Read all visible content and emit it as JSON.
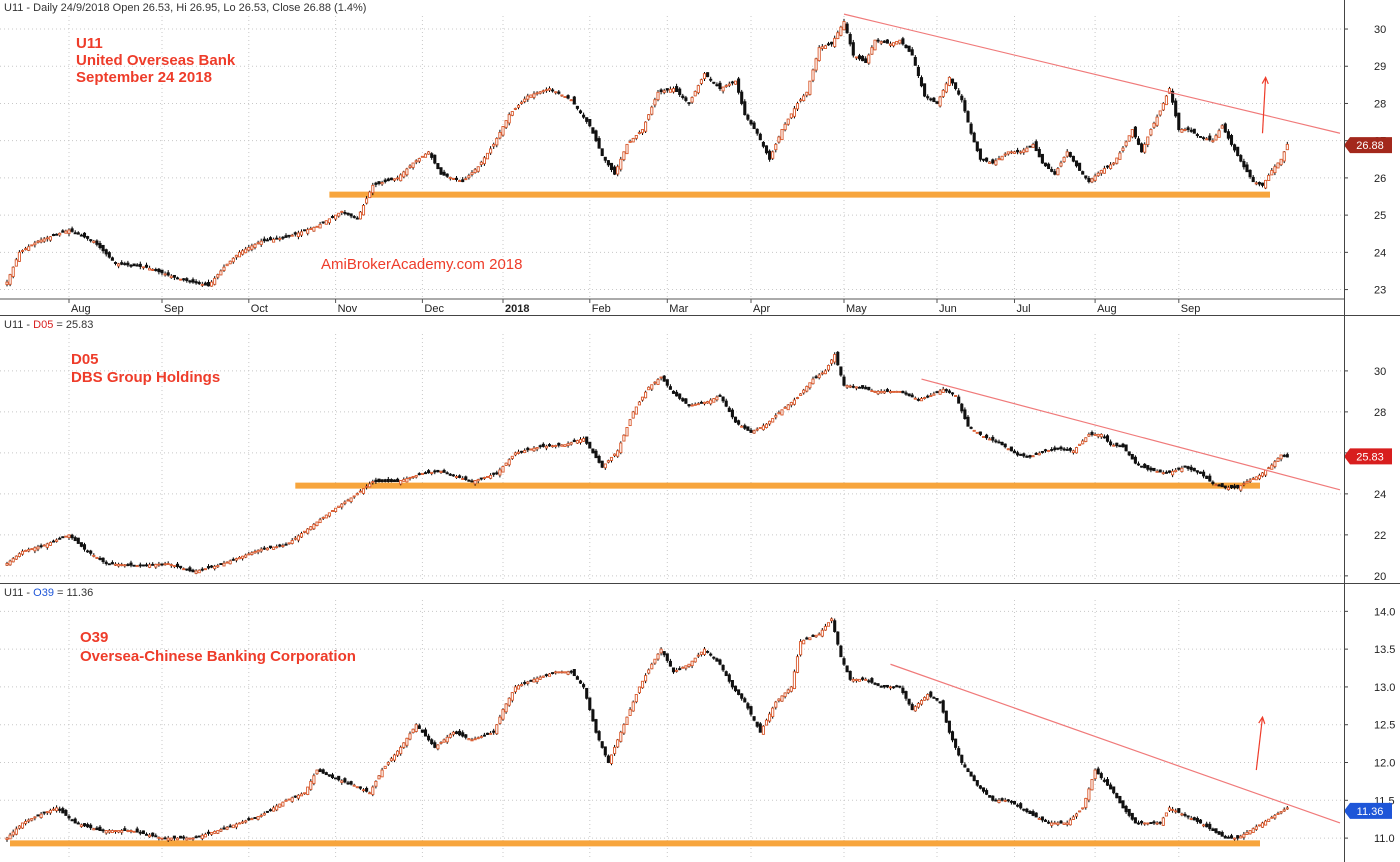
{
  "colors": {
    "up": "#d9582b",
    "down": "#111111",
    "support": "#f7a53d",
    "trend": "#f07a7a",
    "annotation": "#ee3c2a",
    "grid": "#c8c8c8",
    "badge_p1": "#a3281c",
    "badge_p2": "#d81e1e",
    "badge_p3": "#1e56d8"
  },
  "months": [
    "Aug",
    "Sep",
    "Oct",
    "Nov",
    "Dec",
    "2018",
    "Feb",
    "Mar",
    "Apr",
    "May",
    "Jun",
    "Jul",
    "Aug",
    "Sep"
  ],
  "watermark": "AmiBrokerAcademy.com  2018",
  "chart_data": [
    {
      "type": "candlestick",
      "header": {
        "symbol": "U11",
        "text": " - Daily 24/9/2018 Open 26.53, Hi 26.95, Lo 26.53, Close 26.88 (1.4%)"
      },
      "annotations": [
        "U11",
        "United Overseas Bank",
        "September 24 2018"
      ],
      "ylim": [
        22.8,
        30.35
      ],
      "yticks": [
        "23",
        "24",
        "25",
        "26",
        "27",
        "28",
        "29",
        "30"
      ],
      "last_value": "26.88",
      "support_level": 25.55,
      "anchors": [
        [
          0,
          23.2
        ],
        [
          4,
          24.0
        ],
        [
          10,
          24.3
        ],
        [
          20,
          24.6
        ],
        [
          28,
          24.3
        ],
        [
          35,
          23.7
        ],
        [
          45,
          23.6
        ],
        [
          55,
          23.3
        ],
        [
          65,
          23.1
        ],
        [
          70,
          23.6
        ],
        [
          75,
          24.0
        ],
        [
          82,
          24.3
        ],
        [
          90,
          24.4
        ],
        [
          100,
          24.7
        ],
        [
          108,
          25.1
        ],
        [
          113,
          24.9
        ],
        [
          118,
          25.8
        ],
        [
          126,
          26.0
        ],
        [
          131,
          26.4
        ],
        [
          136,
          26.7
        ],
        [
          140,
          26.1
        ],
        [
          147,
          25.9
        ],
        [
          152,
          26.3
        ],
        [
          157,
          26.9
        ],
        [
          162,
          27.7
        ],
        [
          168,
          28.2
        ],
        [
          175,
          28.4
        ],
        [
          182,
          28.1
        ],
        [
          188,
          27.4
        ],
        [
          192,
          26.6
        ],
        [
          196,
          26.1
        ],
        [
          200,
          26.9
        ],
        [
          205,
          27.3
        ],
        [
          210,
          28.3
        ],
        [
          215,
          28.4
        ],
        [
          220,
          28.0
        ],
        [
          225,
          28.8
        ],
        [
          230,
          28.4
        ],
        [
          235,
          28.6
        ],
        [
          238,
          27.7
        ],
        [
          242,
          27.2
        ],
        [
          246,
          26.5
        ],
        [
          250,
          27.3
        ],
        [
          255,
          28.0
        ],
        [
          258,
          28.3
        ],
        [
          262,
          29.5
        ],
        [
          266,
          29.6
        ],
        [
          270,
          30.2
        ],
        [
          273,
          29.3
        ],
        [
          277,
          29.1
        ],
        [
          280,
          29.7
        ],
        [
          285,
          29.6
        ],
        [
          288,
          29.7
        ],
        [
          292,
          29.3
        ],
        [
          296,
          28.2
        ],
        [
          300,
          28.0
        ],
        [
          304,
          28.7
        ],
        [
          308,
          28.1
        ],
        [
          311,
          27.2
        ],
        [
          314,
          26.5
        ],
        [
          318,
          26.4
        ],
        [
          323,
          26.7
        ],
        [
          327,
          26.7
        ],
        [
          331,
          26.9
        ],
        [
          334,
          26.4
        ],
        [
          338,
          26.1
        ],
        [
          342,
          26.7
        ],
        [
          346,
          26.2
        ],
        [
          349,
          25.9
        ],
        [
          353,
          26.2
        ],
        [
          357,
          26.4
        ],
        [
          360,
          26.8
        ],
        [
          363,
          27.3
        ],
        [
          366,
          26.7
        ],
        [
          369,
          27.3
        ],
        [
          372,
          27.8
        ],
        [
          375,
          28.4
        ],
        [
          378,
          27.3
        ],
        [
          381,
          27.3
        ],
        [
          385,
          27.1
        ],
        [
          389,
          27.0
        ],
        [
          392,
          27.4
        ],
        [
          395,
          26.9
        ],
        [
          399,
          26.3
        ],
        [
          402,
          25.9
        ],
        [
          405,
          25.8
        ],
        [
          408,
          26.2
        ],
        [
          411,
          26.5
        ],
        [
          413,
          26.9
        ]
      ],
      "trendline": [
        [
          270,
          30.4
        ],
        [
          430,
          27.2
        ]
      ],
      "arrow": [
        [
          405,
          27.2
        ],
        [
          406,
          28.7
        ]
      ]
    },
    {
      "type": "candlestick",
      "header": {
        "symbol": "U11",
        "text": " - ",
        "name": "D05",
        "value": " = 25.83"
      },
      "annotations": [
        "D05",
        "DBS Group Holdings"
      ],
      "ylim": [
        19.7,
        31.8
      ],
      "yticks": [
        "20",
        "22",
        "24",
        "26",
        "28",
        "30"
      ],
      "last_value": "25.83",
      "support_level": 24.4,
      "anchors": [
        [
          0,
          20.6
        ],
        [
          5,
          21.2
        ],
        [
          12,
          21.5
        ],
        [
          20,
          22.0
        ],
        [
          25,
          21.3
        ],
        [
          32,
          20.6
        ],
        [
          42,
          20.5
        ],
        [
          52,
          20.6
        ],
        [
          60,
          20.2
        ],
        [
          68,
          20.5
        ],
        [
          75,
          20.9
        ],
        [
          82,
          21.3
        ],
        [
          90,
          21.5
        ],
        [
          98,
          22.4
        ],
        [
          106,
          23.3
        ],
        [
          112,
          23.9
        ],
        [
          118,
          24.6
        ],
        [
          126,
          24.6
        ],
        [
          134,
          25.0
        ],
        [
          140,
          25.1
        ],
        [
          150,
          24.6
        ],
        [
          158,
          25.0
        ],
        [
          164,
          26.0
        ],
        [
          172,
          26.3
        ],
        [
          180,
          26.4
        ],
        [
          186,
          26.7
        ],
        [
          192,
          25.3
        ],
        [
          197,
          26.1
        ],
        [
          202,
          28.0
        ],
        [
          207,
          29.2
        ],
        [
          211,
          29.7
        ],
        [
          215,
          28.9
        ],
        [
          220,
          28.3
        ],
        [
          226,
          28.5
        ],
        [
          230,
          28.8
        ],
        [
          235,
          27.5
        ],
        [
          240,
          27.0
        ],
        [
          245,
          27.4
        ],
        [
          250,
          28.1
        ],
        [
          255,
          28.7
        ],
        [
          260,
          29.6
        ],
        [
          264,
          30.0
        ],
        [
          267,
          30.8
        ],
        [
          270,
          29.3
        ],
        [
          275,
          29.2
        ],
        [
          280,
          29.0
        ],
        [
          288,
          29.0
        ],
        [
          294,
          28.6
        ],
        [
          298,
          28.8
        ],
        [
          302,
          29.1
        ],
        [
          306,
          28.8
        ],
        [
          310,
          27.3
        ],
        [
          315,
          26.8
        ],
        [
          320,
          26.5
        ],
        [
          326,
          25.9
        ],
        [
          330,
          25.8
        ],
        [
          335,
          26.1
        ],
        [
          340,
          26.2
        ],
        [
          344,
          26.1
        ],
        [
          349,
          26.9
        ],
        [
          353,
          26.9
        ],
        [
          356,
          26.4
        ],
        [
          360,
          26.3
        ],
        [
          364,
          25.5
        ],
        [
          368,
          25.2
        ],
        [
          374,
          25.0
        ],
        [
          380,
          25.3
        ],
        [
          385,
          25.0
        ],
        [
          389,
          24.5
        ],
        [
          393,
          24.3
        ],
        [
          397,
          24.3
        ],
        [
          400,
          24.6
        ],
        [
          404,
          24.9
        ],
        [
          408,
          25.4
        ],
        [
          411,
          25.9
        ],
        [
          413,
          25.8
        ]
      ],
      "trendline": [
        [
          295,
          29.6
        ],
        [
          430,
          24.2
        ]
      ]
    },
    {
      "type": "candlestick",
      "header": {
        "symbol": "U11",
        "text": " - ",
        "name": "O39",
        "value": " = 11.36"
      },
      "annotations": [
        "O39",
        "Oversea-Chinese Banking Corporation"
      ],
      "ylim": [
        10.75,
        14.15
      ],
      "yticks": [
        "11.0",
        "11.5",
        "12.0",
        "12.5",
        "13.0",
        "13.5",
        "14.0"
      ],
      "last_value": "11.36",
      "support_level": 10.93,
      "anchors": [
        [
          0,
          11.0
        ],
        [
          5,
          11.2
        ],
        [
          10,
          11.3
        ],
        [
          16,
          11.4
        ],
        [
          22,
          11.2
        ],
        [
          30,
          11.1
        ],
        [
          40,
          11.1
        ],
        [
          50,
          11.0
        ],
        [
          60,
          11.0
        ],
        [
          68,
          11.1
        ],
        [
          75,
          11.2
        ],
        [
          82,
          11.3
        ],
        [
          90,
          11.5
        ],
        [
          96,
          11.6
        ],
        [
          100,
          11.9
        ],
        [
          105,
          11.8
        ],
        [
          112,
          11.7
        ],
        [
          117,
          11.6
        ],
        [
          121,
          11.9
        ],
        [
          127,
          12.2
        ],
        [
          132,
          12.5
        ],
        [
          138,
          12.2
        ],
        [
          144,
          12.4
        ],
        [
          150,
          12.3
        ],
        [
          157,
          12.4
        ],
        [
          160,
          12.7
        ],
        [
          164,
          13.0
        ],
        [
          170,
          13.1
        ],
        [
          177,
          13.2
        ],
        [
          182,
          13.2
        ],
        [
          186,
          13.0
        ],
        [
          190,
          12.4
        ],
        [
          194,
          12.0
        ],
        [
          197,
          12.3
        ],
        [
          200,
          12.6
        ],
        [
          204,
          13.0
        ],
        [
          208,
          13.3
        ],
        [
          211,
          13.5
        ],
        [
          215,
          13.2
        ],
        [
          220,
          13.3
        ],
        [
          225,
          13.5
        ],
        [
          230,
          13.3
        ],
        [
          234,
          13.0
        ],
        [
          238,
          12.8
        ],
        [
          243,
          12.4
        ],
        [
          248,
          12.8
        ],
        [
          253,
          13.0
        ],
        [
          256,
          13.6
        ],
        [
          262,
          13.7
        ],
        [
          266,
          13.9
        ],
        [
          269,
          13.4
        ],
        [
          272,
          13.1
        ],
        [
          277,
          13.1
        ],
        [
          282,
          13.0
        ],
        [
          288,
          13.0
        ],
        [
          292,
          12.7
        ],
        [
          297,
          12.9
        ],
        [
          301,
          12.8
        ],
        [
          304,
          12.4
        ],
        [
          308,
          12.0
        ],
        [
          313,
          11.7
        ],
        [
          318,
          11.5
        ],
        [
          323,
          11.5
        ],
        [
          327,
          11.4
        ],
        [
          331,
          11.3
        ],
        [
          336,
          11.2
        ],
        [
          342,
          11.2
        ],
        [
          347,
          11.4
        ],
        [
          351,
          11.9
        ],
        [
          353,
          11.8
        ],
        [
          357,
          11.6
        ],
        [
          360,
          11.4
        ],
        [
          364,
          11.2
        ],
        [
          368,
          11.2
        ],
        [
          372,
          11.2
        ],
        [
          375,
          11.4
        ],
        [
          380,
          11.3
        ],
        [
          385,
          11.2
        ],
        [
          389,
          11.1
        ],
        [
          393,
          11.0
        ],
        [
          397,
          11.0
        ],
        [
          401,
          11.1
        ],
        [
          405,
          11.2
        ],
        [
          409,
          11.3
        ],
        [
          413,
          11.4
        ]
      ],
      "trendline": [
        [
          285,
          13.3
        ],
        [
          430,
          11.2
        ]
      ],
      "arrow": [
        [
          403,
          11.9
        ],
        [
          405,
          12.6
        ]
      ]
    }
  ]
}
